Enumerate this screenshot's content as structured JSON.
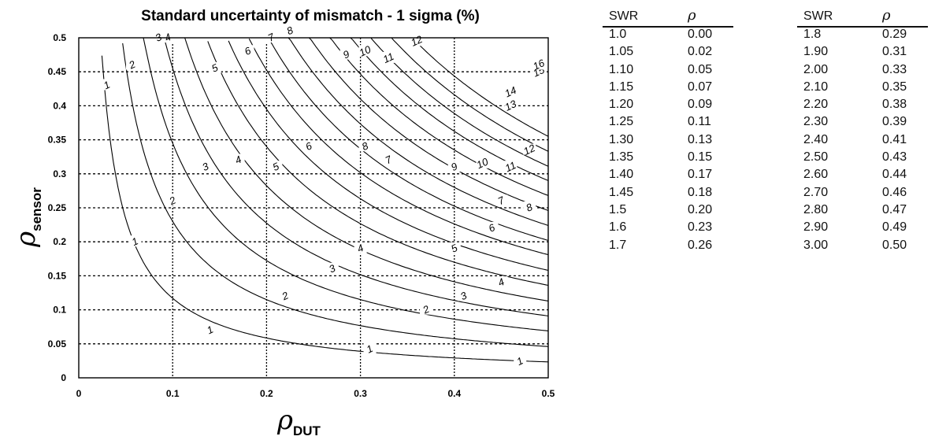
{
  "chart_data": {
    "type": "line",
    "title": "Standard uncertainty of mismatch - 1 sigma (%)",
    "xlabel": "ρ",
    "xlabel_subscript": "DUT",
    "ylabel": "ρ",
    "ylabel_subscript": "sensor",
    "xlim": [
      0,
      0.5
    ],
    "ylim": [
      0,
      0.5
    ],
    "x_ticks": [
      "0",
      "0.1",
      "0.2",
      "0.3",
      "0.4",
      "0.5"
    ],
    "y_ticks": [
      "0",
      "0.05",
      "0.1",
      "0.15",
      "0.2",
      "0.25",
      "0.3",
      "0.35",
      "0.4",
      "0.45",
      "0.5"
    ],
    "grid": "dotted",
    "series": [
      {
        "label": "1",
        "values": [
          1,
          2,
          3,
          4,
          5,
          6,
          7,
          8,
          9,
          10,
          11,
          12,
          13,
          14,
          15,
          16
        ]
      }
    ],
    "contour_levels": [
      1,
      2,
      3,
      4,
      5,
      6,
      7,
      8,
      9,
      10,
      11,
      12,
      13,
      14,
      15,
      16
    ],
    "contour_label_positions": [
      [
        [
          0.14,
          0.07
        ],
        [
          0.31,
          0.042
        ],
        [
          0.47,
          0.024
        ],
        [
          0.06,
          0.2
        ],
        [
          0.03,
          0.43
        ]
      ],
      [
        [
          0.22,
          0.12
        ],
        [
          0.37,
          0.1
        ],
        [
          0.1,
          0.26
        ],
        [
          0.057,
          0.46
        ]
      ],
      [
        [
          0.27,
          0.16
        ],
        [
          0.41,
          0.12
        ],
        [
          0.135,
          0.31
        ],
        [
          0.085,
          0.5
        ]
      ],
      [
        [
          0.3,
          0.19
        ],
        [
          0.45,
          0.14
        ],
        [
          0.17,
          0.32
        ],
        [
          0.095,
          0.5
        ]
      ],
      [
        [
          0.4,
          0.19
        ],
        [
          0.21,
          0.31
        ],
        [
          0.145,
          0.455
        ]
      ],
      [
        [
          0.44,
          0.22
        ],
        [
          0.245,
          0.34
        ],
        [
          0.18,
          0.48
        ]
      ],
      [
        [
          0.45,
          0.26
        ],
        [
          0.33,
          0.32
        ],
        [
          0.205,
          0.5
        ]
      ],
      [
        [
          0.48,
          0.25
        ],
        [
          0.305,
          0.34
        ],
        [
          0.225,
          0.51
        ]
      ],
      [
        [
          0.4,
          0.31
        ],
        [
          0.285,
          0.475
        ]
      ],
      [
        [
          0.43,
          0.315
        ],
        [
          0.305,
          0.48
        ]
      ],
      [
        [
          0.46,
          0.31
        ],
        [
          0.33,
          0.47
        ]
      ],
      [
        [
          0.48,
          0.335
        ],
        [
          0.36,
          0.495
        ]
      ],
      [
        [
          0.46,
          0.4
        ]
      ],
      [
        [
          0.46,
          0.42
        ]
      ],
      [
        [
          0.49,
          0.45
        ]
      ],
      [
        [
          0.49,
          0.46
        ]
      ]
    ]
  },
  "swr_table_left": {
    "col_swr": "SWR",
    "col_rho": "ρ",
    "rows": [
      [
        "1.0",
        "0.00"
      ],
      [
        "1.05",
        "0.02"
      ],
      [
        "1.10",
        "0.05"
      ],
      [
        "1.15",
        "0.07"
      ],
      [
        "1.20",
        "0.09"
      ],
      [
        "1.25",
        "0.11"
      ],
      [
        "1.30",
        "0.13"
      ],
      [
        "1.35",
        "0.15"
      ],
      [
        "1.40",
        "0.17"
      ],
      [
        "1.45",
        "0.18"
      ],
      [
        "1.5",
        "0.20"
      ],
      [
        "1.6",
        "0.23"
      ],
      [
        "1.7",
        "0.26"
      ]
    ]
  },
  "swr_table_right": {
    "col_swr": "SWR",
    "col_rho": "ρ",
    "rows": [
      [
        "1.8",
        "0.29"
      ],
      [
        "1.90",
        "0.31"
      ],
      [
        "2.00",
        "0.33"
      ],
      [
        "2.10",
        "0.35"
      ],
      [
        "2.20",
        "0.38"
      ],
      [
        "2.30",
        "0.39"
      ],
      [
        "2.40",
        "0.41"
      ],
      [
        "2.50",
        "0.43"
      ],
      [
        "2.60",
        "0.44"
      ],
      [
        "2.70",
        "0.46"
      ],
      [
        "2.80",
        "0.47"
      ],
      [
        "2.90",
        "0.49"
      ],
      [
        "3.00",
        "0.50"
      ]
    ]
  }
}
